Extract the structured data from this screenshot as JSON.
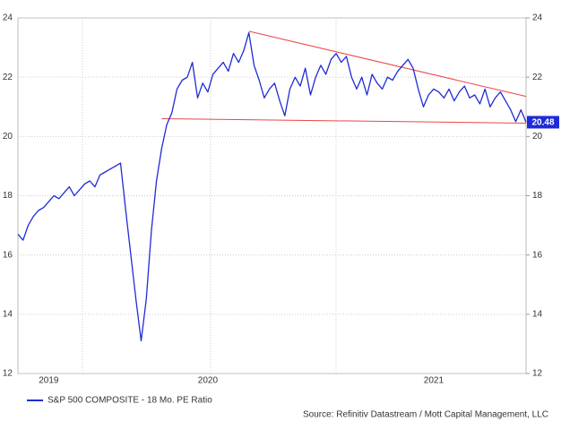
{
  "chart_data": {
    "type": "line",
    "categories": [
      null,
      null,
      null,
      null,
      null,
      null,
      "2019",
      null,
      null,
      null,
      null,
      null,
      null,
      null,
      null,
      null,
      null,
      null,
      null,
      null,
      null,
      null,
      null,
      null,
      null,
      null,
      null,
      null,
      null,
      null,
      null,
      null,
      null,
      null,
      null,
      null,
      null,
      "2020",
      null,
      null,
      null,
      null,
      null,
      null,
      null,
      null,
      null,
      null,
      null,
      null,
      null,
      null,
      null,
      null,
      null,
      null,
      null,
      null,
      null,
      null,
      null,
      null,
      null,
      null,
      null,
      null,
      null,
      null,
      null,
      null,
      null,
      null,
      null,
      null,
      null,
      null,
      null,
      null,
      null,
      null,
      null,
      "2021",
      null,
      null,
      null,
      null,
      null,
      null,
      null,
      null,
      null,
      null,
      null,
      null,
      null,
      null,
      null,
      null,
      null,
      null
    ],
    "series": [
      {
        "name": "S&P 500 COMPOSITE - 18 Mo. PE Ratio",
        "color": "#1f2bd6",
        "values": [
          16.7,
          16.5,
          17.0,
          17.3,
          17.5,
          17.6,
          17.8,
          18.0,
          17.9,
          18.1,
          18.3,
          18.0,
          18.2,
          18.4,
          18.5,
          18.3,
          18.7,
          18.8,
          18.9,
          19.0,
          19.1,
          17.5,
          16.0,
          14.5,
          13.1,
          14.5,
          16.8,
          18.5,
          19.6,
          20.4,
          20.8,
          21.6,
          21.9,
          22.0,
          22.5,
          21.3,
          21.8,
          21.5,
          22.1,
          22.3,
          22.5,
          22.2,
          22.8,
          22.5,
          22.9,
          23.5,
          22.4,
          21.9,
          21.3,
          21.6,
          21.8,
          21.2,
          20.7,
          21.6,
          22.0,
          21.7,
          22.3,
          21.4,
          22.0,
          22.4,
          22.1,
          22.6,
          22.8,
          22.5,
          22.7,
          22.0,
          21.6,
          22.0,
          21.4,
          22.1,
          21.8,
          21.6,
          22.0,
          21.9,
          22.2,
          22.4,
          22.6,
          22.3,
          21.6,
          21.0,
          21.4,
          21.6,
          21.5,
          21.3,
          21.6,
          21.2,
          21.5,
          21.7,
          21.3,
          21.4,
          21.1,
          21.6,
          21.0,
          21.3,
          21.5,
          21.2,
          20.9,
          20.5,
          20.9,
          20.48
        ]
      }
    ],
    "last_value": 20.48,
    "trendlines": [
      {
        "color": "#ee4444",
        "start": [
          45,
          23.55
        ],
        "end": [
          99,
          21.35
        ]
      },
      {
        "color": "#ee4444",
        "start": [
          28,
          20.6
        ],
        "end": [
          99,
          20.45
        ]
      }
    ],
    "ylim": [
      12,
      24
    ],
    "yticks": [
      12,
      14,
      16,
      18,
      20,
      22,
      24
    ],
    "y2lim": [
      12,
      24
    ],
    "y2ticks": [
      12,
      14,
      16,
      18,
      20,
      22,
      24
    ],
    "grid": true,
    "source": "Source: Refinitiv Datastream / Mott Capital Management, LLC"
  }
}
